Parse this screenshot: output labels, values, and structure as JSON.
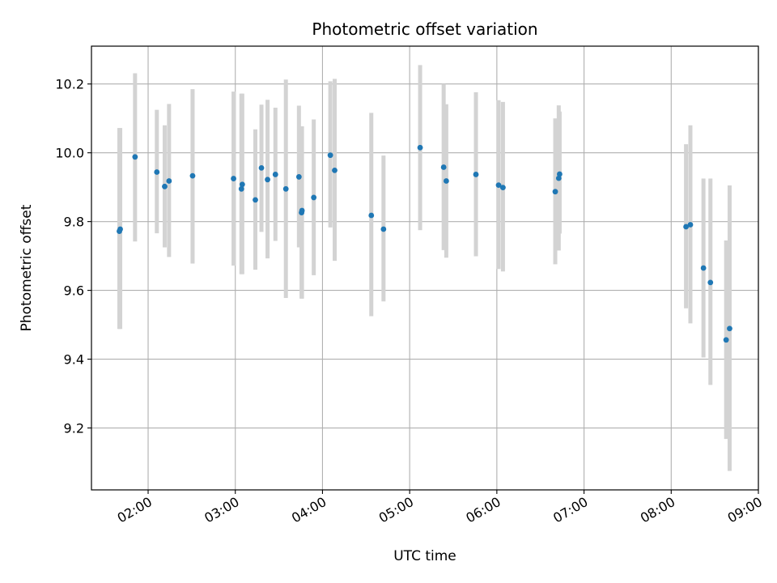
{
  "chart_data": {
    "type": "scatter",
    "title": "Photometric offset variation",
    "xlabel": "UTC time",
    "ylabel": "Photometric offset",
    "x_unit": "hours UTC",
    "xlim": [
      1.35,
      9.0
    ],
    "ylim": [
      9.02,
      10.31
    ],
    "x_ticks": [
      {
        "value": 2,
        "label": "02:00"
      },
      {
        "value": 3,
        "label": "03:00"
      },
      {
        "value": 4,
        "label": "04:00"
      },
      {
        "value": 5,
        "label": "05:00"
      },
      {
        "value": 6,
        "label": "06:00"
      },
      {
        "value": 7,
        "label": "07:00"
      },
      {
        "value": 8,
        "label": "08:00"
      },
      {
        "value": 9,
        "label": "09:00"
      }
    ],
    "y_ticks": [
      {
        "value": 9.2,
        "label": "9.2"
      },
      {
        "value": 9.4,
        "label": "9.4"
      },
      {
        "value": 9.6,
        "label": "9.6"
      },
      {
        "value": 9.8,
        "label": "9.8"
      },
      {
        "value": 10.0,
        "label": "10.0"
      },
      {
        "value": 10.2,
        "label": "10.2"
      }
    ],
    "grid": true,
    "marker_color": "#1f77b4",
    "errorbar_color": "#d3d3d3",
    "points": [
      {
        "x": 1.67,
        "y": 9.772,
        "err_low": 9.488,
        "err_high": 10.072
      },
      {
        "x": 1.68,
        "y": 9.778,
        "err_low": 9.488,
        "err_high": 10.072
      },
      {
        "x": 1.85,
        "y": 9.988,
        "err_low": 9.742,
        "err_high": 10.231
      },
      {
        "x": 2.1,
        "y": 9.944,
        "err_low": 9.766,
        "err_high": 10.125
      },
      {
        "x": 2.19,
        "y": 9.902,
        "err_low": 9.725,
        "err_high": 10.08
      },
      {
        "x": 2.24,
        "y": 9.918,
        "err_low": 9.697,
        "err_high": 10.142
      },
      {
        "x": 2.51,
        "y": 9.933,
        "err_low": 9.678,
        "err_high": 10.185
      },
      {
        "x": 2.98,
        "y": 9.925,
        "err_low": 9.672,
        "err_high": 10.178
      },
      {
        "x": 3.07,
        "y": 9.895,
        "err_low": 9.647,
        "err_high": 10.172
      },
      {
        "x": 3.08,
        "y": 9.908,
        "err_low": 9.647,
        "err_high": 10.172
      },
      {
        "x": 3.23,
        "y": 9.863,
        "err_low": 9.66,
        "err_high": 10.068
      },
      {
        "x": 3.3,
        "y": 9.956,
        "err_low": 9.77,
        "err_high": 10.14
      },
      {
        "x": 3.37,
        "y": 9.922,
        "err_low": 9.693,
        "err_high": 10.154
      },
      {
        "x": 3.46,
        "y": 9.937,
        "err_low": 9.744,
        "err_high": 10.131
      },
      {
        "x": 3.58,
        "y": 9.895,
        "err_low": 9.578,
        "err_high": 10.213
      },
      {
        "x": 3.73,
        "y": 9.93,
        "err_low": 9.725,
        "err_high": 10.137
      },
      {
        "x": 3.76,
        "y": 9.826,
        "err_low": 9.576,
        "err_high": 10.077
      },
      {
        "x": 3.765,
        "y": 9.832,
        "err_low": 9.576,
        "err_high": 10.077
      },
      {
        "x": 3.9,
        "y": 9.87,
        "err_low": 9.644,
        "err_high": 10.097
      },
      {
        "x": 4.09,
        "y": 9.993,
        "err_low": 9.783,
        "err_high": 10.208
      },
      {
        "x": 4.14,
        "y": 9.949,
        "err_low": 9.686,
        "err_high": 10.215
      },
      {
        "x": 4.56,
        "y": 9.818,
        "err_low": 9.525,
        "err_high": 10.116
      },
      {
        "x": 4.7,
        "y": 9.778,
        "err_low": 9.568,
        "err_high": 9.992
      },
      {
        "x": 5.12,
        "y": 10.015,
        "err_low": 9.775,
        "err_high": 10.255
      },
      {
        "x": 5.39,
        "y": 9.958,
        "err_low": 9.717,
        "err_high": 10.2
      },
      {
        "x": 5.42,
        "y": 9.918,
        "err_low": 9.695,
        "err_high": 10.141
      },
      {
        "x": 5.76,
        "y": 9.937,
        "err_low": 9.699,
        "err_high": 10.176
      },
      {
        "x": 6.02,
        "y": 9.906,
        "err_low": 9.662,
        "err_high": 10.153
      },
      {
        "x": 6.07,
        "y": 9.899,
        "err_low": 9.655,
        "err_high": 10.148
      },
      {
        "x": 6.67,
        "y": 9.887,
        "err_low": 9.676,
        "err_high": 10.1
      },
      {
        "x": 6.71,
        "y": 9.926,
        "err_low": 9.716,
        "err_high": 10.138
      },
      {
        "x": 6.72,
        "y": 9.938,
        "err_low": 9.765,
        "err_high": 10.12
      },
      {
        "x": 8.17,
        "y": 9.785,
        "err_low": 9.548,
        "err_high": 10.025
      },
      {
        "x": 8.22,
        "y": 9.791,
        "err_low": 9.504,
        "err_high": 10.08
      },
      {
        "x": 8.37,
        "y": 9.665,
        "err_low": 9.405,
        "err_high": 9.925
      },
      {
        "x": 8.45,
        "y": 9.623,
        "err_low": 9.325,
        "err_high": 9.925
      },
      {
        "x": 8.63,
        "y": 9.456,
        "err_low": 9.168,
        "err_high": 9.745
      },
      {
        "x": 8.67,
        "y": 9.489,
        "err_low": 9.075,
        "err_high": 9.905
      }
    ]
  }
}
